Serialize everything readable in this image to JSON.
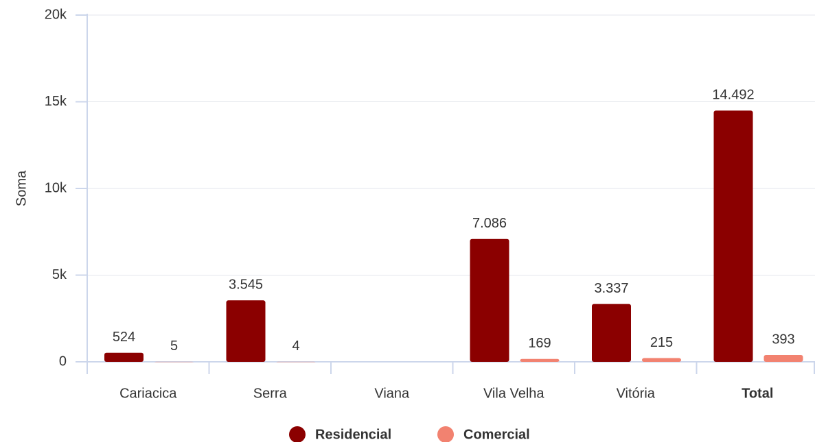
{
  "chart_data": {
    "type": "bar",
    "y_label": "Soma",
    "categories": [
      "Cariacica",
      "Serra",
      "Viana",
      "Vila Velha",
      "Vitória",
      "Total"
    ],
    "series": [
      {
        "name": "Residencial",
        "color": "#8b0000",
        "values": [
          524,
          3545,
          null,
          7086,
          3337,
          14492
        ],
        "value_labels": [
          "524",
          "3.545",
          null,
          "7.086",
          "3.337",
          "14.492"
        ]
      },
      {
        "name": "Comercial",
        "color": "#f28270",
        "values": [
          5,
          4,
          null,
          169,
          215,
          393
        ],
        "value_labels": [
          "5",
          "4",
          null,
          "169",
          "215",
          "393"
        ]
      }
    ],
    "ylim": [
      0,
      20000
    ],
    "yticks": [
      0,
      {
        "value": 5000,
        "label": "5k"
      },
      {
        "value": 10000,
        "label": "10k"
      },
      {
        "value": 15000,
        "label": "15k"
      },
      {
        "value": 20000,
        "label": "20k"
      }
    ],
    "grid": true
  }
}
